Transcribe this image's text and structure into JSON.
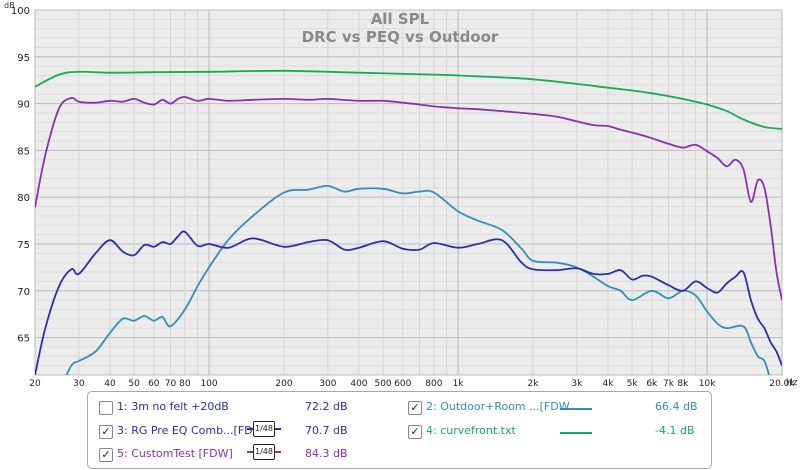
{
  "chart_data": {
    "type": "line",
    "title": "All SPL",
    "subtitle": "DRC vs PEQ vs Outdoor",
    "ylabel": "dB",
    "xlabel": "Hz",
    "xscale": "log",
    "xlim": [
      20,
      20000
    ],
    "ylim": [
      61,
      100
    ],
    "grid": true,
    "yticks": [
      65,
      70,
      75,
      80,
      85,
      90,
      95,
      100
    ],
    "xticks": [
      {
        "v": 20,
        "t": "20"
      },
      {
        "v": 30,
        "t": "30"
      },
      {
        "v": 40,
        "t": "40"
      },
      {
        "v": 50,
        "t": "50"
      },
      {
        "v": 60,
        "t": "60"
      },
      {
        "v": 70,
        "t": "70"
      },
      {
        "v": 80,
        "t": "80"
      },
      {
        "v": 100,
        "t": "100"
      },
      {
        "v": 200,
        "t": "200"
      },
      {
        "v": 300,
        "t": "300"
      },
      {
        "v": 400,
        "t": "400"
      },
      {
        "v": 500,
        "t": "500"
      },
      {
        "v": 600,
        "t": "600"
      },
      {
        "v": 800,
        "t": "800"
      },
      {
        "v": 1000,
        "t": "1k"
      },
      {
        "v": 2000,
        "t": "2k"
      },
      {
        "v": 3000,
        "t": "3k"
      },
      {
        "v": 4000,
        "t": "4k"
      },
      {
        "v": 5000,
        "t": "5k"
      },
      {
        "v": 6000,
        "t": "6k"
      },
      {
        "v": 7000,
        "t": "7k"
      },
      {
        "v": 8000,
        "t": "8k"
      },
      {
        "v": 10000,
        "t": "10k"
      },
      {
        "v": 20000,
        "t": "20.0k"
      }
    ],
    "series": [
      {
        "name": "4: curvefront.txt",
        "color": "#1aa85a",
        "x": [
          20,
          25,
          30,
          40,
          60,
          100,
          200,
          400,
          800,
          1000,
          1500,
          2000,
          3000,
          4000,
          5000,
          6000,
          7000,
          8000,
          10000,
          12000,
          14000,
          17000,
          20000
        ],
        "y": [
          91.8,
          93.1,
          93.4,
          93.3,
          93.35,
          93.4,
          93.5,
          93.3,
          93.1,
          93.0,
          92.8,
          92.6,
          92.1,
          91.7,
          91.4,
          91.1,
          90.8,
          90.5,
          89.9,
          89.2,
          88.3,
          87.5,
          87.3
        ]
      },
      {
        "name": "5: CustomTest [FDW]",
        "color": "#8a2fb3",
        "x": [
          20,
          22,
          25,
          28,
          30,
          35,
          40,
          45,
          50,
          55,
          60,
          65,
          70,
          75,
          80,
          90,
          100,
          120,
          150,
          200,
          250,
          300,
          400,
          500,
          600,
          700,
          800,
          1000,
          1200,
          1500,
          2000,
          2500,
          3000,
          3500,
          4000,
          4500,
          5000,
          5500,
          6000,
          7000,
          8000,
          9000,
          10000,
          11000,
          12000,
          13000,
          14000,
          15000,
          16000,
          17000,
          18000,
          19000,
          20000
        ],
        "y": [
          78.9,
          84.5,
          89.5,
          90.6,
          90.2,
          90.1,
          90.3,
          90.2,
          90.5,
          90.1,
          89.9,
          90.4,
          90.0,
          90.5,
          90.7,
          90.3,
          90.5,
          90.3,
          90.4,
          90.5,
          90.4,
          90.5,
          90.3,
          90.3,
          90.1,
          89.9,
          89.7,
          89.5,
          89.4,
          89.2,
          88.9,
          88.6,
          88.1,
          87.7,
          87.6,
          87.2,
          86.9,
          86.6,
          86.3,
          85.7,
          85.3,
          85.6,
          84.9,
          84.2,
          83.3,
          84.0,
          83.0,
          79.5,
          81.8,
          81.0,
          77.0,
          72.0,
          69.0
        ]
      },
      {
        "name": "2: Outdoor+Room ...[FDW",
        "color": "#2f8fbf",
        "x": [
          20,
          25,
          28,
          30,
          35,
          40,
          45,
          50,
          55,
          60,
          65,
          70,
          80,
          90,
          100,
          120,
          150,
          200,
          250,
          300,
          350,
          400,
          500,
          600,
          700,
          800,
          1000,
          1200,
          1500,
          1800,
          2000,
          2500,
          3000,
          3500,
          4000,
          4500,
          5000,
          6000,
          7000,
          8000,
          9000,
          10000,
          11000,
          12000,
          14000,
          15000,
          16000,
          17000,
          18000,
          19000,
          20000
        ],
        "y": [
          56.0,
          59.5,
          62.0,
          62.5,
          63.5,
          65.5,
          67.0,
          66.8,
          67.3,
          66.8,
          67.2,
          66.2,
          68.0,
          70.5,
          72.5,
          75.5,
          78.0,
          80.5,
          80.8,
          81.2,
          80.6,
          80.9,
          80.9,
          80.4,
          80.6,
          80.5,
          78.5,
          77.5,
          76.5,
          74.5,
          73.2,
          73.0,
          72.5,
          71.5,
          70.5,
          70.0,
          69.0,
          70.0,
          69.2,
          70.0,
          69.5,
          67.8,
          66.5,
          66.0,
          66.2,
          64.5,
          63.0,
          62.5,
          60.5,
          59.0,
          58.0
        ]
      },
      {
        "name": "3: RG Pre EQ Comb...[FDW",
        "color": "#2d2fa8",
        "x": [
          20,
          22,
          25,
          28,
          30,
          35,
          40,
          45,
          50,
          55,
          60,
          65,
          70,
          75,
          80,
          90,
          100,
          120,
          150,
          200,
          250,
          300,
          350,
          400,
          500,
          600,
          700,
          800,
          1000,
          1200,
          1500,
          1800,
          2000,
          2500,
          3000,
          3500,
          4000,
          4500,
          5000,
          5500,
          6000,
          7000,
          8000,
          9000,
          10000,
          11000,
          12000,
          13000,
          14000,
          15000,
          16000,
          17000,
          18000,
          19000,
          20000
        ],
        "y": [
          61.0,
          66.0,
          70.5,
          72.3,
          71.8,
          74.0,
          75.4,
          74.2,
          73.8,
          74.9,
          74.7,
          75.2,
          75.0,
          75.8,
          76.3,
          74.8,
          75.0,
          74.6,
          75.6,
          74.7,
          75.2,
          75.4,
          74.4,
          74.6,
          75.3,
          74.5,
          74.4,
          75.1,
          74.6,
          75.0,
          75.4,
          73.0,
          72.3,
          72.2,
          72.4,
          71.8,
          71.8,
          72.2,
          71.2,
          71.6,
          71.5,
          70.6,
          70.0,
          71.0,
          70.3,
          69.8,
          70.8,
          71.5,
          72.0,
          69.0,
          67.0,
          66.0,
          64.5,
          63.5,
          62.0
        ]
      }
    ]
  },
  "legend": {
    "entries": [
      {
        "label": "1: 3m no felt +20dB",
        "value": "72.2 dB",
        "checked": false,
        "check_glyph": "",
        "label_color": "#2d2fa8",
        "value_color": "#2d2fa8"
      },
      {
        "label": "2: Outdoor+Room ...[FDW",
        "value": "66.4 dB",
        "checked": true,
        "check_glyph": "✓",
        "label_color": "#2f8fbf",
        "value_color": "#2f8fbf"
      },
      {
        "label": "3: RG Pre EQ Comb...[FDW",
        "value": "70.7 dB",
        "checked": true,
        "check_glyph": "✓",
        "label_color": "#2d2fa8",
        "value_color": "#2d2fa8",
        "smoothing": "1/48"
      },
      {
        "label": "4: curvefront.txt",
        "value": "-4.1 dB",
        "checked": true,
        "check_glyph": "✓",
        "label_color": "#1aa85a",
        "value_color": "#1aa85a"
      },
      {
        "label": "5: CustomTest [FDW]",
        "value": "84.3 dB",
        "checked": true,
        "check_glyph": "✓",
        "label_color": "#8a2fb3",
        "value_color": "#8a2fb3",
        "smoothing": "1/48"
      }
    ]
  }
}
